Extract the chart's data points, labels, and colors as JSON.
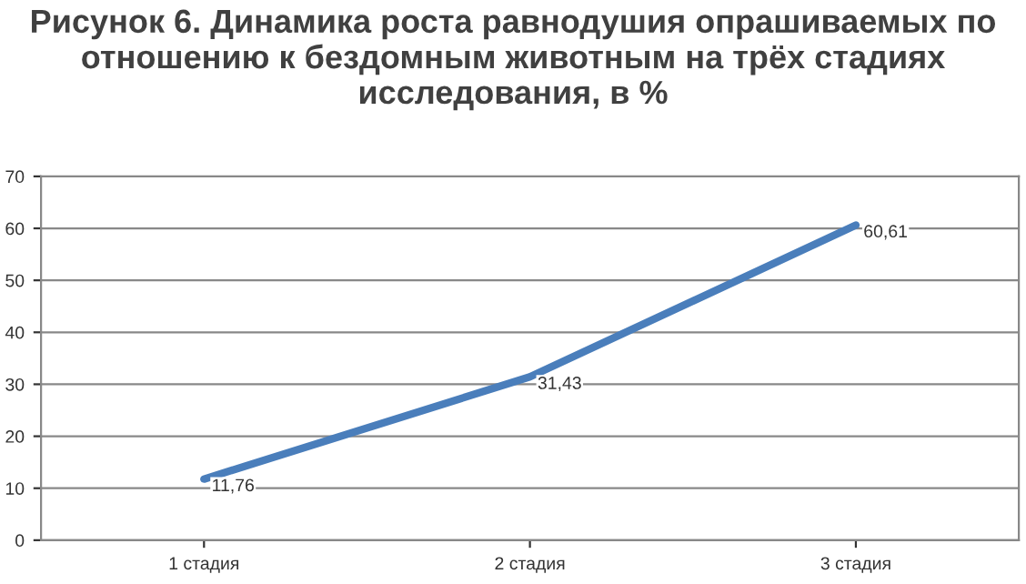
{
  "chart_data": {
    "type": "line",
    "title": "Рисунок 6. Динамика роста равнодушия опрашиваемых по отношению к бездомным животным на трёх стадиях исследования, в %",
    "categories": [
      "1 стадия",
      "2 стадия",
      "3 стадия"
    ],
    "series": [
      {
        "color": "#4a7ebb",
        "values": [
          11.76,
          31.43,
          60.61
        ],
        "value_labels": [
          "11,76",
          "31,43",
          "60,61"
        ]
      }
    ],
    "ylim": [
      0,
      70
    ],
    "yticks": [
      0,
      10,
      20,
      30,
      40,
      50,
      60,
      70
    ],
    "grid": "y",
    "legend": false,
    "marker": "none",
    "line_style": "solid"
  }
}
